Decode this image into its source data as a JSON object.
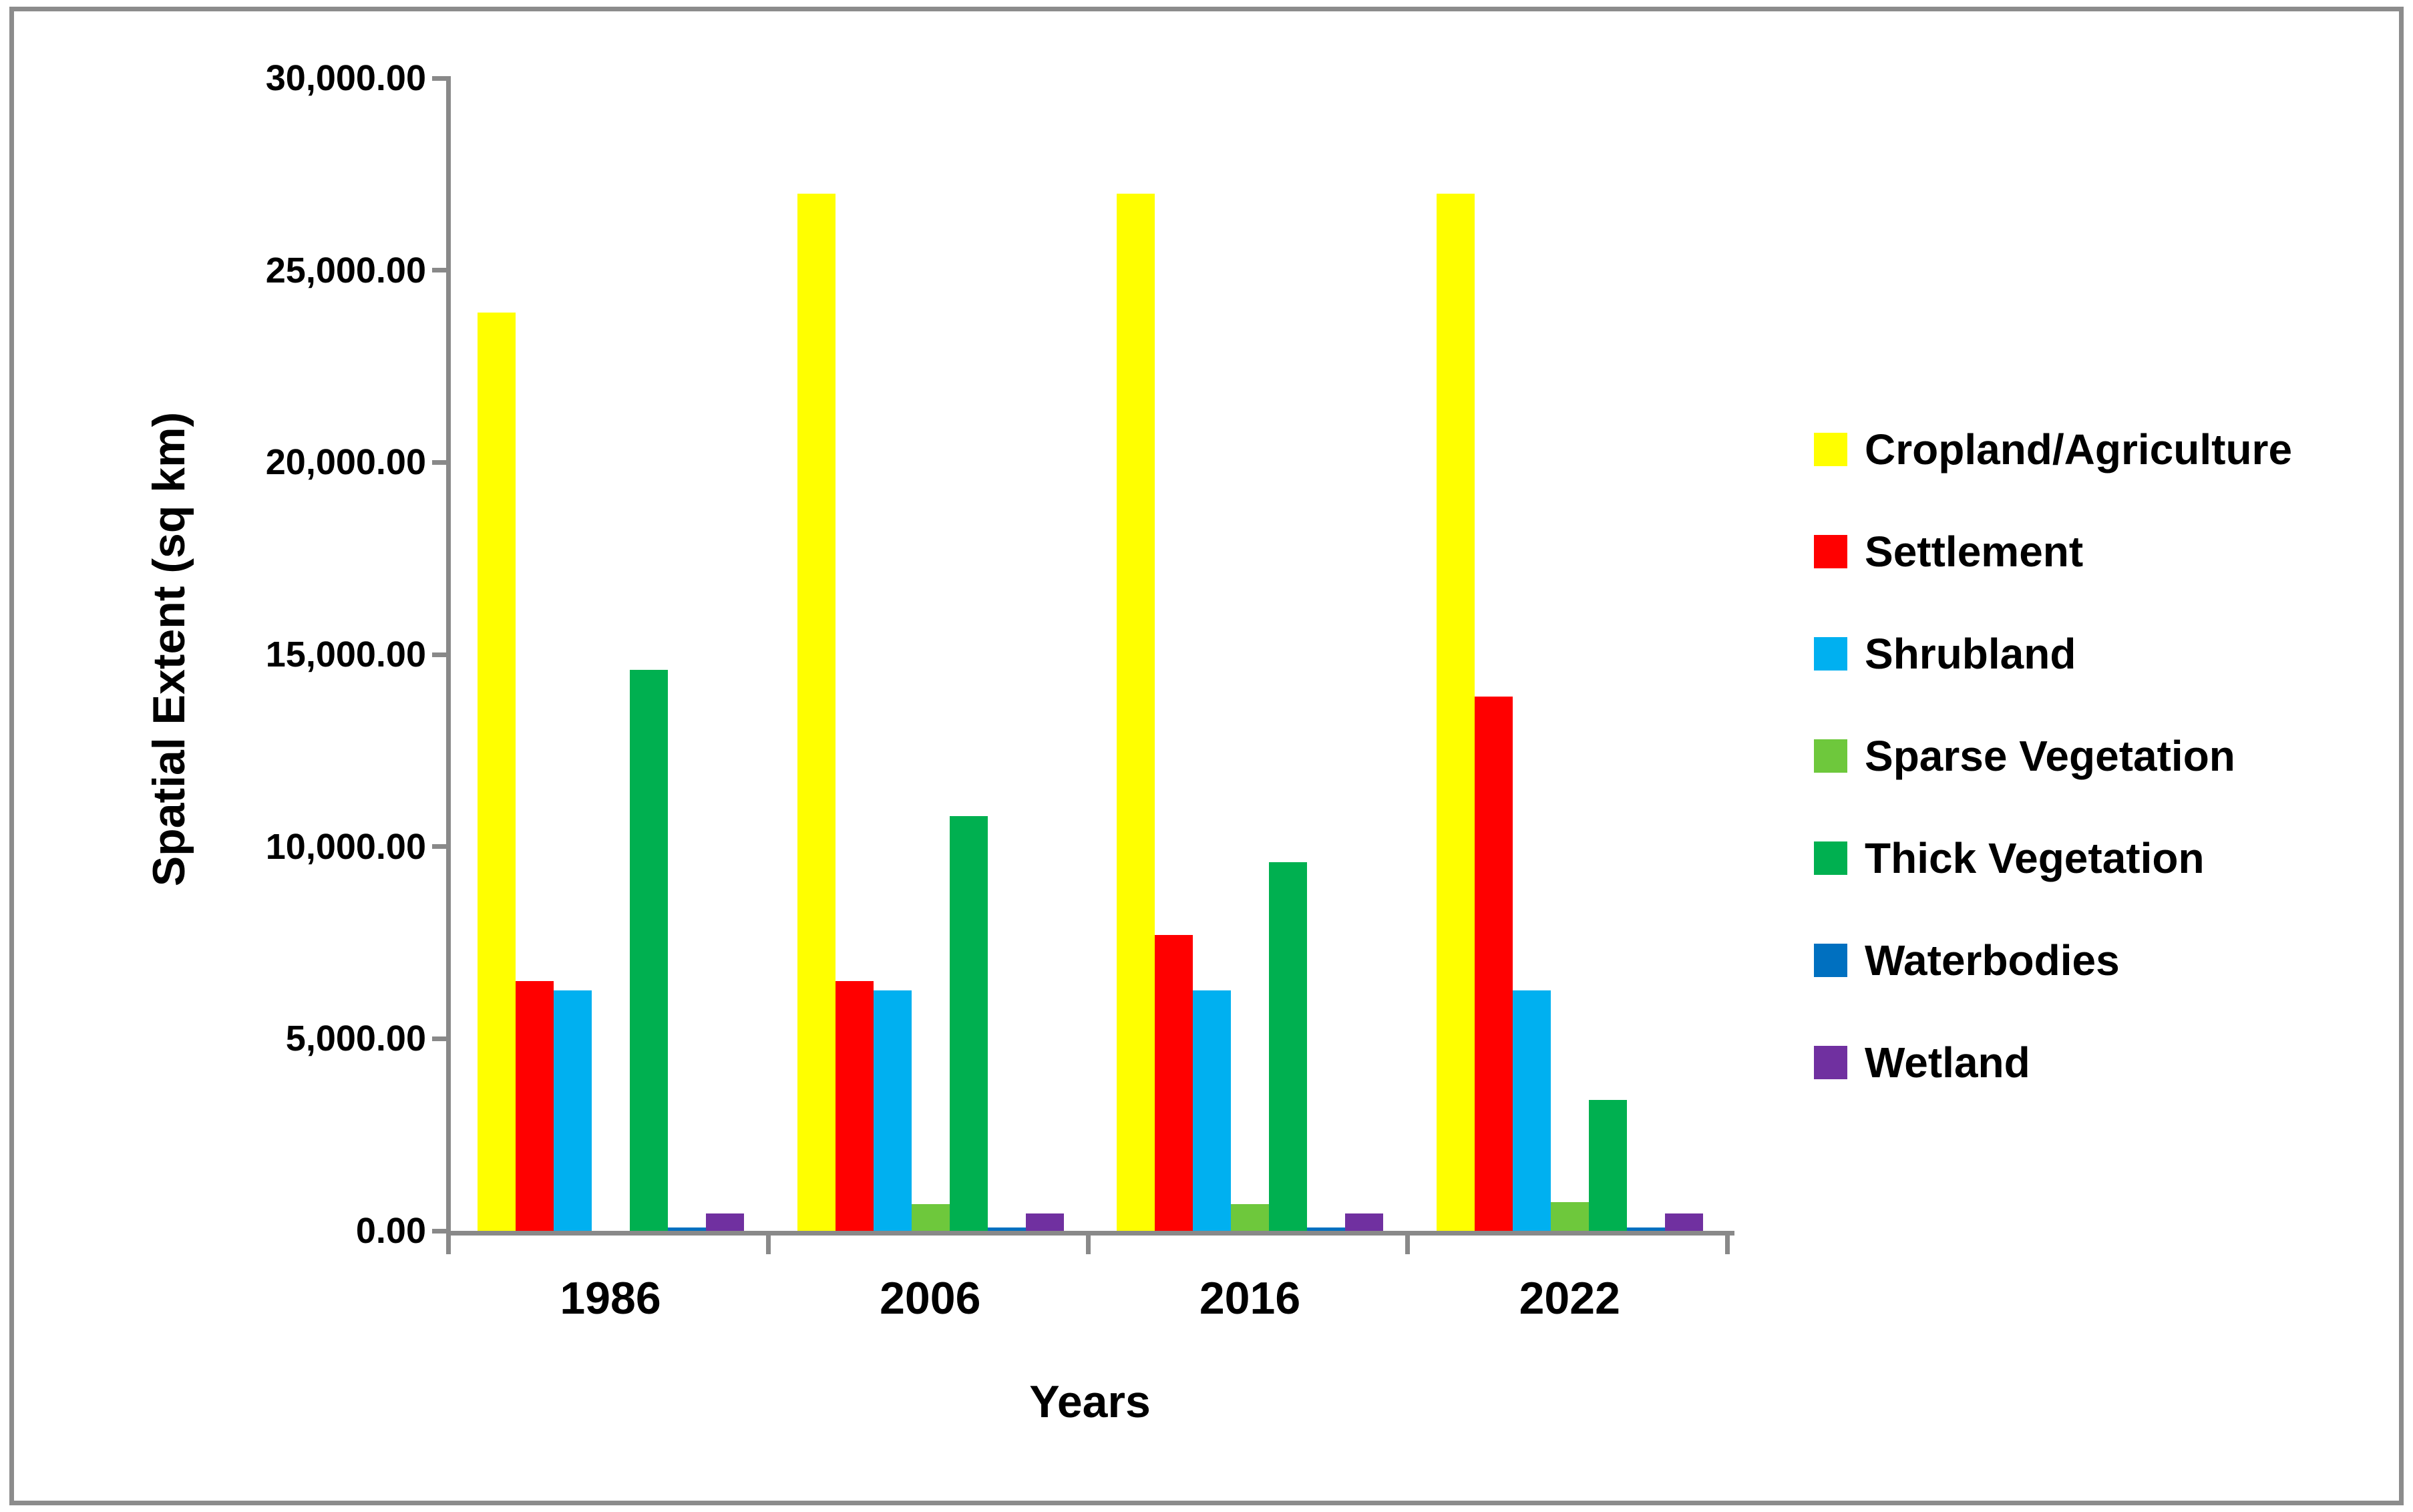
{
  "chart_data": {
    "type": "bar",
    "title": "",
    "categories": [
      "1986",
      "2006",
      "2016",
      "2022"
    ],
    "series": [
      {
        "name": "Cropland/Agriculture",
        "color": "#FFFF00",
        "values": [
          23900,
          27000,
          27000,
          27000
        ]
      },
      {
        "name": "Settlement",
        "color": "#FF0000",
        "values": [
          6500,
          6500,
          7700,
          13900
        ]
      },
      {
        "name": "Shrubland",
        "color": "#00B0F0",
        "values": [
          6250,
          6250,
          6250,
          6250
        ]
      },
      {
        "name": "Sparse Vegetation",
        "color": "#6EC83C",
        "values": [
          0,
          700,
          700,
          750
        ]
      },
      {
        "name": "Thick Vegetation",
        "color": "#00B050",
        "values": [
          14600,
          10800,
          9600,
          3400
        ]
      },
      {
        "name": "Waterbodies",
        "color": "#0070C0",
        "values": [
          80,
          80,
          80,
          80
        ]
      },
      {
        "name": "Wetland",
        "color": "#7030A0",
        "values": [
          450,
          450,
          450,
          450
        ]
      }
    ],
    "xlabel": "Years",
    "ylabel": "Spatial Extent (sq km)",
    "ylim": [
      0,
      30000
    ],
    "ytick_step": 5000,
    "ytick_labels": [
      "0.00",
      "5,000.00",
      "10,000.00",
      "15,000.00",
      "20,000.00",
      "25,000.00",
      "30,000.00"
    ],
    "legend_position": "right",
    "grid": false,
    "axis_color": "#898989"
  }
}
